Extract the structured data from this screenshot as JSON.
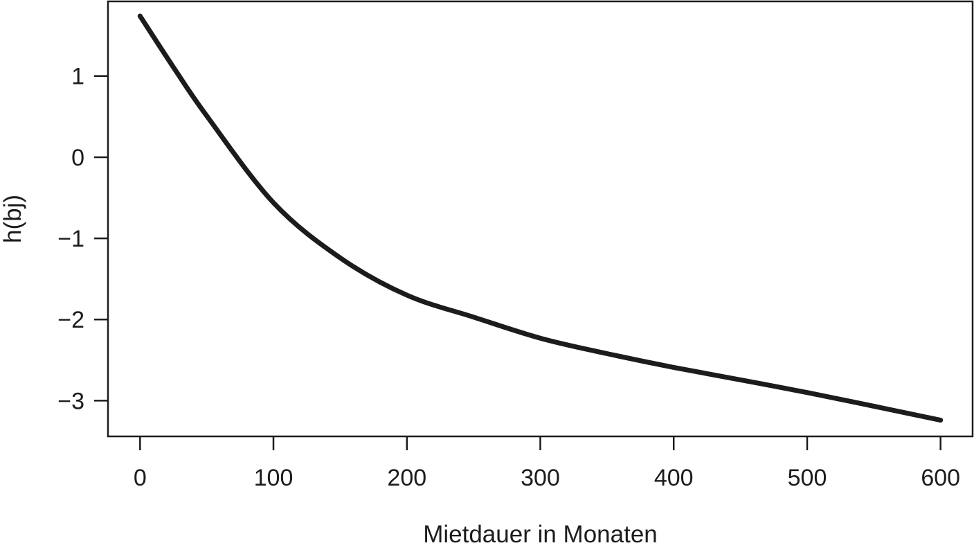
{
  "figure": {
    "background": "#ffffff",
    "ink_color": "#1c1c1c"
  },
  "chart_data": {
    "type": "line",
    "title": "",
    "xlabel": "Mietdauer in Monaten",
    "ylabel": "h(bj)",
    "xlim": [
      -24,
      624
    ],
    "ylim": [
      -3.44,
      1.92
    ],
    "x_ticks": [
      0,
      100,
      200,
      300,
      400,
      500,
      600
    ],
    "x_tick_labels": [
      "0",
      "100",
      "200",
      "300",
      "400",
      "500",
      "600"
    ],
    "y_ticks": [
      -3,
      -2,
      -1,
      0,
      1
    ],
    "y_tick_labels": [
      "−3",
      "−2",
      "−1",
      "0",
      "1"
    ],
    "grid": false,
    "legend": "none",
    "frame": "box",
    "series": [
      {
        "name": "h(bj)",
        "type": "line",
        "color": "#1c1c1c",
        "line_width": 7,
        "x": [
          0,
          25,
          50,
          100,
          150,
          200,
          250,
          300,
          350,
          400,
          500,
          600
        ],
        "y": [
          1.74,
          1.11,
          0.51,
          -0.56,
          -1.24,
          -1.7,
          -1.97,
          -2.23,
          -2.42,
          -2.59,
          -2.9,
          -3.24
        ]
      }
    ]
  }
}
